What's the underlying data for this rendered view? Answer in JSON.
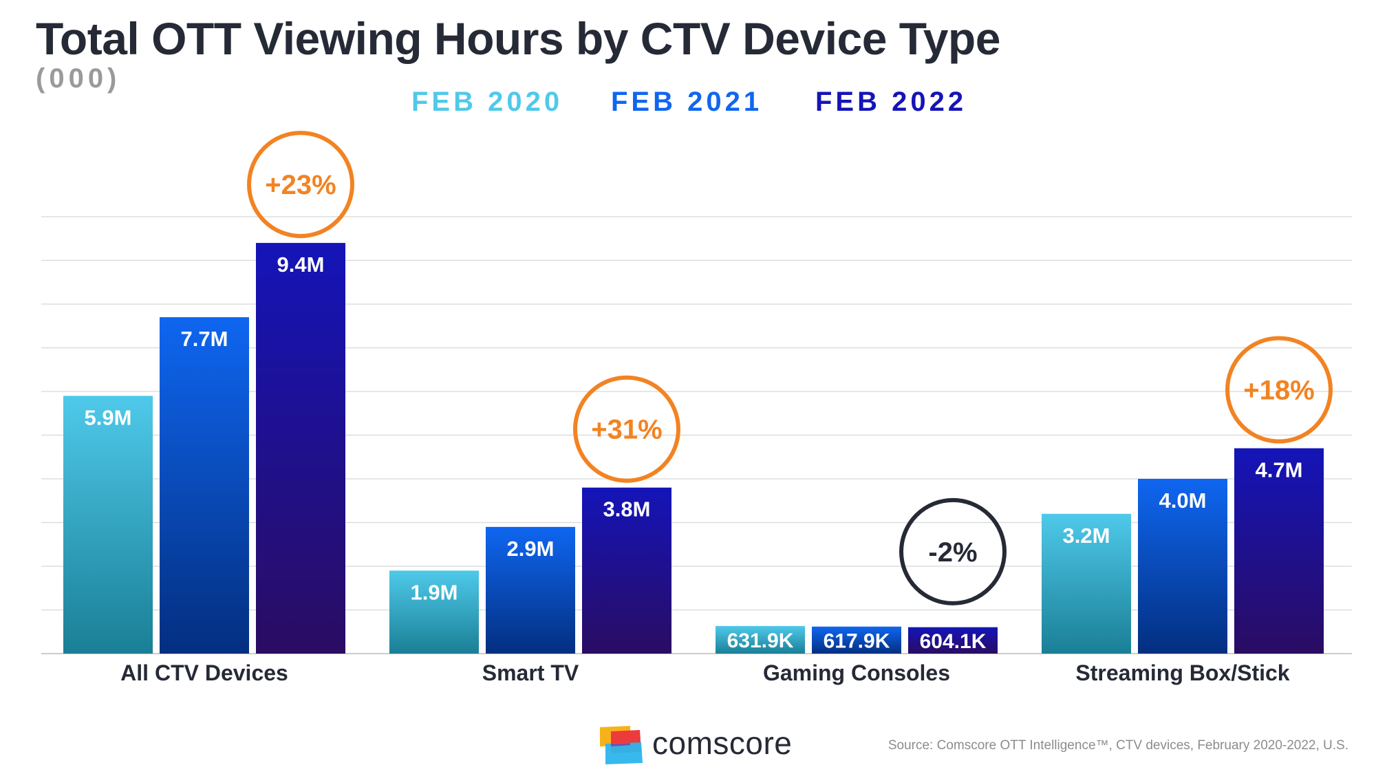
{
  "header": {
    "title": "Total OTT Viewing Hours by CTV Device Type",
    "subtitle": "(000)"
  },
  "chart_data": {
    "type": "bar",
    "title": "Total OTT Viewing Hours by CTV Device Type",
    "subtitle": "(000)",
    "xlabel": "",
    "ylabel": "",
    "ylim": [
      0,
      10
    ],
    "grid": true,
    "legend_position": "top-center",
    "categories": [
      "All CTV Devices",
      "Smart TV",
      "Gaming Consoles",
      "Streaming Box/Stick"
    ],
    "series": [
      {
        "name": "FEB 2020",
        "color": "#4fc9ea",
        "values": [
          5.9,
          1.9,
          0.6319,
          3.2
        ],
        "labels": [
          "5.9M",
          "1.9M",
          "631.9K",
          "3.2M"
        ]
      },
      {
        "name": "FEB 2021",
        "color": "#0f66f0",
        "values": [
          7.7,
          2.9,
          0.6179,
          4.0
        ],
        "labels": [
          "7.7M",
          "2.9M",
          "617.9K",
          "4.0M"
        ]
      },
      {
        "name": "FEB 2022",
        "color": "#1414b8",
        "values": [
          9.4,
          3.8,
          0.6041,
          4.7
        ],
        "labels": [
          "9.4M",
          "3.8M",
          "604.1K",
          "4.7M"
        ]
      }
    ],
    "annotations": [
      {
        "category": "All CTV Devices",
        "text": "+23%",
        "direction": "up"
      },
      {
        "category": "Smart TV",
        "text": "+31%",
        "direction": "up"
      },
      {
        "category": "Gaming Consoles",
        "text": "-2%",
        "direction": "down"
      },
      {
        "category": "Streaming Box/Stick",
        "text": "+18%",
        "direction": "up"
      }
    ]
  },
  "colors": {
    "up": "#f28322",
    "down": "#262a36",
    "grid": "#dddddd",
    "title": "#252a36"
  },
  "footer": {
    "brand": "comscore",
    "source": "Source: Comscore OTT Intelligence™, CTV devices, February 2020-2022, U.S."
  }
}
